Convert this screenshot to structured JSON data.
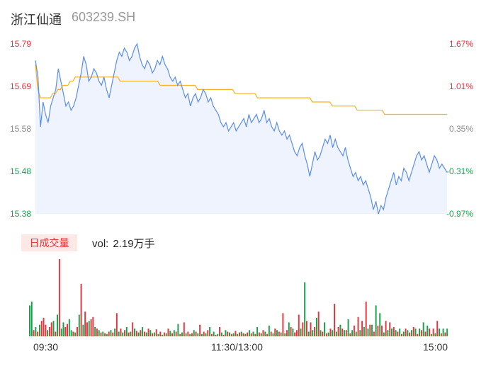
{
  "header": {
    "name": "浙江仙通",
    "code": "603239.SH"
  },
  "volume_panel": {
    "tab_label": "日成交量",
    "vol_label": "vol:",
    "vol_value": "2.19万手"
  },
  "colors": {
    "price_line": "#5b8def",
    "avg_line": "#f5b122",
    "up": "#e8323c",
    "down": "#15a34a",
    "area_fill": "#eef3fd"
  },
  "chart_data": [
    {
      "type": "line",
      "title": "",
      "xlabel": "",
      "ylabel": "",
      "x_ticks": [
        "09:30",
        "11:30/13:00",
        "15:00"
      ],
      "ylim": [
        15.38,
        15.79
      ],
      "y_ticks_left": [
        "15.79",
        "15.69",
        "15.58",
        "15.48",
        "15.38"
      ],
      "y_ticks_right": [
        "1.67%",
        "1.01%",
        "0.35%",
        "-0.31%",
        "-0.97%"
      ],
      "grid": false,
      "series": [
        {
          "name": "",
          "role": "price",
          "values": [
            15.75,
            15.71,
            15.59,
            15.65,
            15.62,
            15.6,
            15.64,
            15.66,
            15.68,
            15.73,
            15.7,
            15.67,
            15.64,
            15.65,
            15.63,
            15.64,
            15.66,
            15.69,
            15.72,
            15.76,
            15.74,
            15.7,
            15.71,
            15.73,
            15.72,
            15.7,
            15.69,
            15.71,
            15.68,
            15.66,
            15.69,
            15.72,
            15.75,
            15.77,
            15.76,
            15.78,
            15.77,
            15.75,
            15.76,
            15.78,
            15.79,
            15.76,
            15.74,
            15.73,
            15.75,
            15.74,
            15.72,
            15.73,
            15.75,
            15.74,
            15.76,
            15.74,
            15.73,
            15.71,
            15.7,
            15.71,
            15.69,
            15.7,
            15.68,
            15.66,
            15.67,
            15.64,
            15.66,
            15.67,
            15.65,
            15.66,
            15.68,
            15.67,
            15.65,
            15.66,
            15.64,
            15.63,
            15.62,
            15.6,
            15.59,
            15.6,
            15.58,
            15.59,
            15.6,
            15.58,
            15.59,
            15.6,
            15.61,
            15.59,
            15.62,
            15.6,
            15.61,
            15.62,
            15.6,
            15.61,
            15.63,
            15.6,
            15.61,
            15.59,
            15.58,
            15.6,
            15.58,
            15.57,
            15.58,
            15.56,
            15.57,
            15.55,
            15.53,
            15.52,
            15.54,
            15.55,
            15.52,
            15.5,
            15.47,
            15.5,
            15.53,
            15.51,
            15.52,
            15.54,
            15.56,
            15.55,
            15.57,
            15.54,
            15.56,
            15.54,
            15.53,
            15.52,
            15.54,
            15.51,
            15.49,
            15.47,
            15.48,
            15.46,
            15.47,
            15.45,
            15.46,
            15.44,
            15.42,
            15.39,
            15.41,
            15.38,
            15.4,
            15.39,
            15.42,
            15.44,
            15.46,
            15.48,
            15.45,
            15.47,
            15.46,
            15.49,
            15.48,
            15.46,
            15.48,
            15.5,
            15.52,
            15.53,
            15.51,
            15.52,
            15.5,
            15.48,
            15.5,
            15.52,
            15.51,
            15.49,
            15.5,
            15.49,
            15.48
          ]
        },
        {
          "name": "",
          "role": "average",
          "values": [
            15.74,
            15.68,
            15.66,
            15.66,
            15.66,
            15.66,
            15.66,
            15.67,
            15.67,
            15.68,
            15.68,
            15.69,
            15.69,
            15.69,
            15.7,
            15.7,
            15.71,
            15.71,
            15.71,
            15.71,
            15.71,
            15.71,
            15.71,
            15.71,
            15.71,
            15.71,
            15.71,
            15.71,
            15.71,
            15.71,
            15.71,
            15.71,
            15.71,
            15.71,
            15.7,
            15.7,
            15.7,
            15.7,
            15.7,
            15.7,
            15.7,
            15.7,
            15.7,
            15.7,
            15.7,
            15.7,
            15.7,
            15.7,
            15.7,
            15.7,
            15.69,
            15.69,
            15.69,
            15.69,
            15.69,
            15.69,
            15.69,
            15.69,
            15.69,
            15.69,
            15.69,
            15.69,
            15.69,
            15.69,
            15.69,
            15.68,
            15.68,
            15.68,
            15.68,
            15.68,
            15.68,
            15.68,
            15.68,
            15.68,
            15.68,
            15.68,
            15.68,
            15.68,
            15.68,
            15.68,
            15.67,
            15.67,
            15.67,
            15.67,
            15.67,
            15.67,
            15.67,
            15.67,
            15.67,
            15.66,
            15.66,
            15.66,
            15.66,
            15.66,
            15.66,
            15.66,
            15.66,
            15.66,
            15.66,
            15.66,
            15.66,
            15.66,
            15.66,
            15.66,
            15.66,
            15.66,
            15.66,
            15.66,
            15.66,
            15.66,
            15.66,
            15.65,
            15.65,
            15.65,
            15.65,
            15.65,
            15.65,
            15.65,
            15.65,
            15.64,
            15.64,
            15.64,
            15.64,
            15.64,
            15.64,
            15.64,
            15.64,
            15.64,
            15.64,
            15.63,
            15.63,
            15.63,
            15.63,
            15.63,
            15.63,
            15.63,
            15.63,
            15.63,
            15.63,
            15.63,
            15.62,
            15.62,
            15.62,
            15.62,
            15.62,
            15.62,
            15.62,
            15.62,
            15.62,
            15.62,
            15.62,
            15.62,
            15.62,
            15.62,
            15.62,
            15.62,
            15.62,
            15.62,
            15.62,
            15.62,
            15.62,
            15.62,
            15.62,
            15.62,
            15.62,
            15.62
          ]
        }
      ]
    },
    {
      "type": "bar",
      "title": "",
      "xlabel": "",
      "ylabel": "",
      "series": [
        {
          "name": "",
          "values": [
            40,
            45,
            8,
            12,
            6,
            15,
            20,
            24,
            15,
            8,
            12,
            18,
            20,
            6,
            28,
            100,
            10,
            18,
            12,
            16,
            22,
            8,
            6,
            5,
            12,
            28,
            68,
            15,
            32,
            18,
            20,
            22,
            25,
            12,
            10,
            8,
            5,
            6,
            4,
            3,
            6,
            8,
            5,
            10,
            30,
            6,
            10,
            5,
            8,
            12,
            5,
            6,
            18,
            10,
            7,
            5,
            8,
            12,
            6,
            5,
            10,
            8,
            4,
            5,
            9,
            3,
            6,
            2,
            5,
            4,
            10,
            7,
            4,
            8,
            6,
            16,
            3,
            5,
            18,
            4,
            6,
            3,
            4,
            8,
            6,
            4,
            15,
            3,
            6,
            4,
            8,
            12,
            3,
            6,
            2,
            3,
            12,
            5,
            2,
            8,
            6,
            5,
            3,
            4,
            7,
            3,
            5,
            6,
            4,
            3,
            5,
            8,
            4,
            6,
            3,
            12,
            5,
            4,
            8,
            6,
            3,
            14,
            6,
            4,
            10,
            8,
            6,
            5,
            30,
            4,
            8,
            18,
            12,
            10,
            5,
            8,
            28,
            10,
            18,
            70,
            20,
            6,
            18,
            8,
            12,
            24,
            32,
            8,
            6,
            18,
            4,
            5,
            10,
            8,
            42,
            6,
            12,
            15,
            10,
            8,
            8,
            22,
            4,
            8,
            14,
            6,
            25,
            8,
            20,
            12,
            45,
            10,
            15,
            15,
            6,
            40,
            14,
            30,
            14,
            5,
            20,
            8,
            18,
            10,
            12,
            8,
            6,
            10,
            3,
            6,
            10,
            8,
            5,
            8,
            12,
            10,
            3,
            10,
            8,
            18,
            6,
            14,
            10,
            3,
            10,
            4,
            20,
            10,
            4,
            10,
            5,
            10
          ],
          "colors": [
            "g",
            "g",
            "r",
            "g",
            "r",
            "g",
            "r",
            "r",
            "r",
            "g",
            "r",
            "r",
            "g",
            "r",
            "g",
            "r",
            "g",
            "g",
            "r",
            "r",
            "g",
            "g",
            "r",
            "g",
            "r",
            "g",
            "r",
            "g",
            "r",
            "r",
            "g",
            "r",
            "r",
            "g",
            "r",
            "g",
            "r",
            "g",
            "r",
            "g",
            "r",
            "g",
            "r",
            "g",
            "r",
            "g",
            "r",
            "g",
            "r",
            "g",
            "r",
            "g",
            "r",
            "g",
            "r",
            "g",
            "r",
            "g",
            "r",
            "g",
            "r",
            "g",
            "r",
            "g",
            "r",
            "g",
            "r",
            "g",
            "r",
            "g",
            "r",
            "g",
            "r",
            "g",
            "r",
            "g",
            "r",
            "g",
            "r",
            "g",
            "r",
            "g",
            "r",
            "g",
            "r",
            "g",
            "r",
            "g",
            "r",
            "g",
            "r",
            "g",
            "r",
            "g",
            "r",
            "g",
            "r",
            "g",
            "r",
            "g",
            "r",
            "g",
            "r",
            "g",
            "r",
            "g",
            "r",
            "g",
            "r",
            "g",
            "r",
            "g",
            "r",
            "g",
            "r",
            "g",
            "r",
            "g",
            "r",
            "g",
            "r",
            "g",
            "r",
            "g",
            "r",
            "g",
            "r",
            "g",
            "r",
            "g",
            "r",
            "g",
            "r",
            "g",
            "r",
            "r",
            "r",
            "g",
            "r",
            "g",
            "r",
            "g",
            "r",
            "g",
            "r",
            "g",
            "r",
            "g",
            "r",
            "g",
            "r",
            "g",
            "r",
            "g",
            "r",
            "g",
            "r",
            "g",
            "r",
            "g",
            "r",
            "g",
            "r",
            "g",
            "r",
            "g",
            "r",
            "g",
            "r",
            "g",
            "r",
            "g",
            "r",
            "g",
            "r",
            "g",
            "r",
            "g",
            "r",
            "g",
            "r",
            "g",
            "r",
            "g",
            "r",
            "g",
            "r",
            "g",
            "r",
            "g",
            "r",
            "g",
            "r",
            "g",
            "r",
            "g",
            "r",
            "g",
            "r",
            "g",
            "r",
            "g",
            "r",
            "g",
            "r",
            "g",
            "r",
            "g",
            "r",
            "g",
            "r",
            "g",
            "r"
          ]
        }
      ]
    }
  ]
}
